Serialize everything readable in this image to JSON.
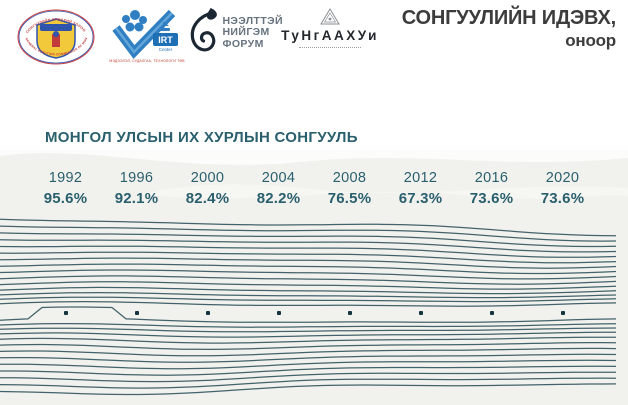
{
  "header": {
    "title_line1": "СОНГУУЛИЙН ИДЭВХ,",
    "title_line2": "оноор",
    "logos": {
      "gec": {
        "icon": "mongolia-election-commission-emblem",
        "arc_top": "СОНГУУЛИЙН ЕРӨНХИЙ ХОРОО",
        "arc_bottom": "GENERAL ELECTION COMMISSION OF MONGOLIA"
      },
      "irt": {
        "icon": "irt-center-checkmark",
        "name": "IRT",
        "sub": "Center",
        "tagline": "МЭДЭЭЛЭЛ, СУДАЛГАА, ТЕХНОЛОГИ ТӨВ"
      },
      "osf": {
        "icon": "open-society-forum-spiral",
        "lines": [
          "НЭЭЛТТЭЙ",
          "НИЙГЭМ",
          "ФОРУМ"
        ]
      },
      "tungaahui": {
        "icon": "tungaahui-triangle",
        "name": "ТуНгААХУи"
      }
    }
  },
  "section": {
    "title": "МОНГОЛ УЛСЫН ИХ ХУРЛЫН СОНГУУЛЬ"
  },
  "chart_data": {
    "type": "line",
    "title": "СОНГУУЛИЙН ИДЭВХ, оноор",
    "subtitle": "МОНГОЛ УЛСЫН ИХ ХУРЛЫН СОНГУУЛЬ",
    "categories": [
      "1992",
      "1996",
      "2000",
      "2004",
      "2008",
      "2012",
      "2016",
      "2020"
    ],
    "values": [
      95.6,
      92.1,
      82.4,
      82.2,
      76.5,
      67.3,
      73.6,
      73.6
    ],
    "value_labels": [
      "95.6%",
      "92.1%",
      "82.4%",
      "82.2%",
      "76.5%",
      "67.3%",
      "73.6%",
      "73.6%"
    ],
    "xlabel": "",
    "ylabel": "",
    "grid": false,
    "legend_position": "none",
    "stream": {
      "line_count": 28,
      "line_color": "#3a5a63",
      "dot_color": "#16333e",
      "band_color": "#f1f2ee",
      "accent_text_color": "#2a5f6d"
    }
  }
}
